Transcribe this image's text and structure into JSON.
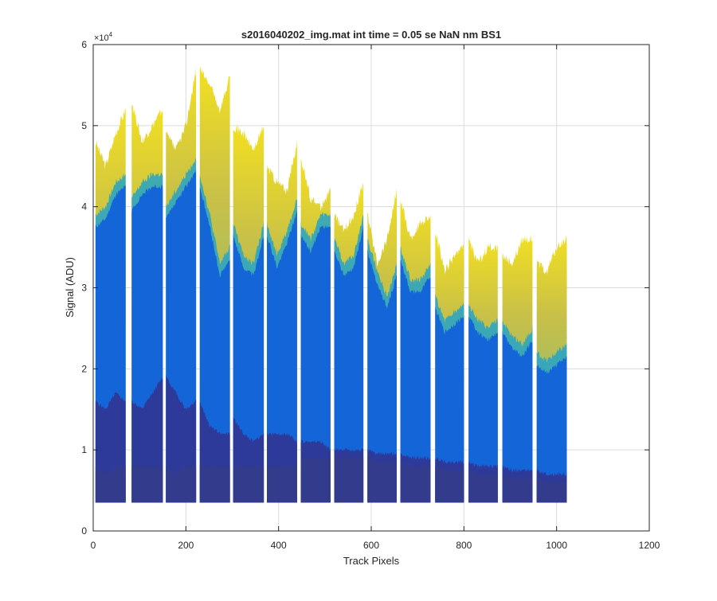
{
  "chart_data": {
    "type": "area",
    "title": "s2016040202_img.mat int time = 0.05 se  NaN nm BS1",
    "xlabel": "Track Pixels",
    "ylabel": "Signal (ADU)",
    "y_exponent_label": "×10",
    "y_exponent_power": "4",
    "xlim": [
      0,
      1200
    ],
    "ylim": [
      0,
      6
    ],
    "y_multiplier": 10000,
    "grid": true,
    "xticks": [
      0,
      200,
      400,
      600,
      800,
      1000,
      1200
    ],
    "yticks": [
      0,
      1,
      2,
      3,
      4,
      5,
      6
    ],
    "xtick_labels": [
      "0",
      "200",
      "400",
      "600",
      "800",
      "1000",
      "1200"
    ],
    "ytick_labels": [
      "0",
      "1",
      "2",
      "3",
      "4",
      "5",
      "6"
    ],
    "baseline": 0.35,
    "segments": [
      {
        "start": 5,
        "end": 70,
        "top": [
          4.8,
          4.5,
          4.9,
          5.2
        ],
        "band_high": [
          3.9,
          4.0,
          4.3,
          4.4
        ],
        "band_mid": [
          1.6,
          1.5,
          1.7,
          1.6
        ],
        "band_low": [
          0.8,
          0.7,
          0.8,
          0.8
        ]
      },
      {
        "start": 83,
        "end": 150,
        "top": [
          5.3,
          4.8,
          5.0,
          5.2
        ],
        "band_high": [
          4.1,
          4.3,
          4.4,
          4.4
        ],
        "band_mid": [
          1.6,
          1.5,
          1.7,
          1.9
        ],
        "band_low": [
          0.8,
          0.8,
          0.8,
          0.8
        ]
      },
      {
        "start": 157,
        "end": 222,
        "top": [
          4.9,
          4.7,
          5.0,
          5.7
        ],
        "band_high": [
          4.0,
          4.2,
          4.4,
          4.6
        ],
        "band_mid": [
          1.9,
          1.7,
          1.5,
          1.6
        ],
        "band_low": [
          0.8,
          0.7,
          0.8,
          0.8
        ]
      },
      {
        "start": 230,
        "end": 295,
        "top": [
          5.7,
          5.5,
          5.2,
          5.6
        ],
        "band_high": [
          4.4,
          3.9,
          3.3,
          3.5
        ],
        "band_mid": [
          1.6,
          1.3,
          1.2,
          1.2
        ],
        "band_low": [
          0.8,
          0.8,
          0.8,
          0.8
        ]
      },
      {
        "start": 302,
        "end": 368,
        "top": [
          5.0,
          4.9,
          4.7,
          5.0
        ],
        "band_high": [
          3.8,
          3.4,
          3.3,
          3.8
        ],
        "band_mid": [
          1.4,
          1.2,
          1.1,
          1.2
        ],
        "band_low": [
          0.8,
          0.8,
          0.8,
          0.8
        ]
      },
      {
        "start": 375,
        "end": 440,
        "top": [
          4.5,
          4.3,
          4.2,
          4.8
        ],
        "band_high": [
          3.8,
          3.4,
          3.7,
          4.1
        ],
        "band_mid": [
          1.2,
          1.2,
          1.2,
          1.1
        ],
        "band_low": [
          0.8,
          0.8,
          0.8,
          0.8
        ]
      },
      {
        "start": 448,
        "end": 512,
        "top": [
          4.6,
          4.1,
          4.0,
          4.2
        ],
        "band_high": [
          3.8,
          3.6,
          3.9,
          3.9
        ],
        "band_mid": [
          1.1,
          1.1,
          1.1,
          1.0
        ],
        "band_low": [
          0.9,
          0.9,
          0.9,
          0.9
        ]
      },
      {
        "start": 520,
        "end": 583,
        "top": [
          3.9,
          3.7,
          3.9,
          4.3
        ],
        "band_high": [
          3.6,
          3.3,
          3.4,
          3.9
        ],
        "band_mid": [
          1.0,
          1.0,
          1.0,
          1.0
        ],
        "band_low": [
          0.9,
          0.9,
          0.9,
          0.9
        ]
      },
      {
        "start": 592,
        "end": 655,
        "top": [
          3.9,
          3.3,
          3.6,
          4.2
        ],
        "band_high": [
          3.6,
          3.2,
          2.9,
          3.3
        ],
        "band_mid": [
          1.0,
          0.95,
          0.95,
          0.95
        ],
        "band_low": [
          0.9,
          0.85,
          0.85,
          0.85
        ]
      },
      {
        "start": 663,
        "end": 728,
        "top": [
          4.1,
          3.6,
          3.8,
          3.9
        ],
        "band_high": [
          3.5,
          3.1,
          3.1,
          3.3
        ],
        "band_mid": [
          0.95,
          0.9,
          0.9,
          0.9
        ],
        "band_low": [
          0.85,
          0.8,
          0.8,
          0.8
        ]
      },
      {
        "start": 738,
        "end": 800,
        "top": [
          3.7,
          3.2,
          3.4,
          3.5
        ],
        "band_high": [
          2.9,
          2.6,
          2.7,
          2.8
        ],
        "band_mid": [
          0.9,
          0.85,
          0.85,
          0.85
        ],
        "band_low": [
          0.8,
          0.75,
          0.75,
          0.75
        ]
      },
      {
        "start": 810,
        "end": 873,
        "top": [
          3.6,
          3.3,
          3.5,
          3.5
        ],
        "band_high": [
          2.8,
          2.6,
          2.5,
          2.6
        ],
        "band_mid": [
          0.85,
          0.8,
          0.8,
          0.8
        ],
        "band_low": [
          0.75,
          0.7,
          0.7,
          0.7
        ]
      },
      {
        "start": 883,
        "end": 948,
        "top": [
          3.4,
          3.3,
          3.6,
          3.6
        ],
        "band_high": [
          2.6,
          2.4,
          2.3,
          2.5
        ],
        "band_mid": [
          0.8,
          0.75,
          0.75,
          0.75
        ],
        "band_low": [
          0.7,
          0.65,
          0.65,
          0.65
        ]
      },
      {
        "start": 957,
        "end": 1022,
        "top": [
          3.3,
          3.2,
          3.5,
          3.6
        ],
        "band_high": [
          2.2,
          2.1,
          2.2,
          2.3
        ],
        "band_mid": [
          0.75,
          0.7,
          0.7,
          0.7
        ],
        "band_low": [
          0.65,
          0.6,
          0.6,
          0.6
        ]
      }
    ],
    "colors": {
      "top": "#e8c83a",
      "upper": "#7fc08a",
      "high": "#24a3c8",
      "mid": "#1466d8",
      "low": "#2d3a9a",
      "base": "#333c8c"
    }
  }
}
